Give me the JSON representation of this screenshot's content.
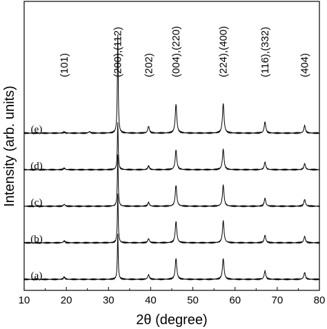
{
  "chart_data": {
    "type": "line",
    "title": "",
    "xlabel": "2θ (degree)",
    "ylabel": "Intensity (arb. units)",
    "xlim": [
      10,
      80
    ],
    "x_ticks": [
      10,
      20,
      30,
      40,
      50,
      60,
      70,
      80
    ],
    "grid": false,
    "y_tick_labels": false,
    "peak_labels": [
      {
        "label": "(101)",
        "x": 19.5
      },
      {
        "label": "(200),(112)",
        "x": 32.2
      },
      {
        "label": "(202)",
        "x": 39.5
      },
      {
        "label": "(004),(220)",
        "x": 46.0
      },
      {
        "label": "(224),(400)",
        "x": 57.2
      },
      {
        "label": "(116),(332)",
        "x": 67.1
      },
      {
        "label": "(404)",
        "x": 76.5
      }
    ],
    "series": [
      {
        "name": "(a)",
        "baseline": 0.5,
        "peaks": [
          {
            "x": 19.5,
            "height": 0.6
          },
          {
            "x": 32.2,
            "height": 12.0
          },
          {
            "x": 39.5,
            "height": 1.2
          },
          {
            "x": 46.0,
            "height": 5.5
          },
          {
            "x": 57.2,
            "height": 5.5
          },
          {
            "x": 67.1,
            "height": 2.2
          },
          {
            "x": 76.5,
            "height": 1.8
          }
        ]
      },
      {
        "name": "(b)",
        "baseline": 1.5,
        "peaks": [
          {
            "x": 19.5,
            "height": 0.5
          },
          {
            "x": 32.2,
            "height": 13.0
          },
          {
            "x": 39.5,
            "height": 1.1
          },
          {
            "x": 46.0,
            "height": 5.6
          },
          {
            "x": 57.2,
            "height": 5.8
          },
          {
            "x": 67.1,
            "height": 2.0
          },
          {
            "x": 76.5,
            "height": 1.7
          }
        ]
      },
      {
        "name": "(c)",
        "baseline": 2.5,
        "peaks": [
          {
            "x": 19.5,
            "height": 0.5
          },
          {
            "x": 32.2,
            "height": 13.5
          },
          {
            "x": 39.5,
            "height": 1.0
          },
          {
            "x": 46.0,
            "height": 5.5
          },
          {
            "x": 57.2,
            "height": 5.6
          },
          {
            "x": 67.1,
            "height": 2.1
          },
          {
            "x": 76.5,
            "height": 1.8
          }
        ]
      },
      {
        "name": "(d)",
        "baseline": 3.5,
        "peaks": [
          {
            "x": 19.5,
            "height": 0.4
          },
          {
            "x": 32.2,
            "height": 12.5
          },
          {
            "x": 39.5,
            "height": 1.0
          },
          {
            "x": 46.0,
            "height": 5.2
          },
          {
            "x": 57.2,
            "height": 5.4
          },
          {
            "x": 67.1,
            "height": 2.0
          },
          {
            "x": 76.5,
            "height": 1.6
          }
        ]
      },
      {
        "name": "(e)",
        "baseline": 4.5,
        "peaks": [
          {
            "x": 19.5,
            "height": 0.3
          },
          {
            "x": 25.5,
            "height": 0.4
          },
          {
            "x": 32.2,
            "height": 26.0
          },
          {
            "x": 39.5,
            "height": 1.8
          },
          {
            "x": 46.0,
            "height": 7.6
          },
          {
            "x": 57.2,
            "height": 7.8
          },
          {
            "x": 67.1,
            "height": 3.0
          },
          {
            "x": 76.5,
            "height": 2.0
          }
        ]
      }
    ],
    "colors": {
      "line": "#000000",
      "background": "#ffffff"
    }
  }
}
